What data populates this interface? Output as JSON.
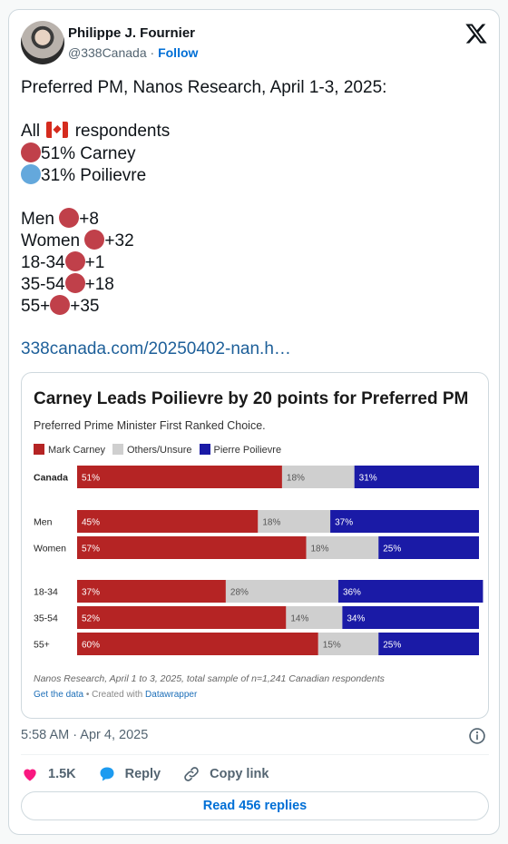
{
  "author": {
    "name": "Philippe J. Fournier",
    "handle": "@338Canada",
    "separator": " · ",
    "follow_label": "Follow"
  },
  "tweet": {
    "line1": "Preferred PM, Nanos Research, April 1-3, 2025:",
    "all_prefix": "All",
    "all_suffix": "respondents",
    "carney_line": "51% Carney",
    "poilievre_line": "31% Poilievre",
    "groups": [
      {
        "label": "Men ",
        "value": "+8"
      },
      {
        "label": "Women ",
        "value": "+32"
      },
      {
        "label": "18-34",
        "value": "+1"
      },
      {
        "label": "35-54",
        "value": "+18"
      },
      {
        "label": "55+",
        "value": "+35"
      }
    ],
    "link": "338canada.com/20250402-nan.h…"
  },
  "colors": {
    "carney": "#b52424",
    "others": "#cfcfcf",
    "poilievre": "#1a1aa6",
    "red_dot": "#c0404a",
    "blue_dot": "#64a8dc"
  },
  "chart_data": {
    "type": "bar",
    "stacked": true,
    "orientation": "horizontal",
    "title": "Carney Leads Poilievre by 20 points for Preferred PM",
    "subtitle": "Preferred Prime Minister First Ranked Choice.",
    "categories": [
      "Canada",
      "Men",
      "Women",
      "18-34",
      "35-54",
      "55+"
    ],
    "series": [
      {
        "name": "Mark Carney",
        "values": [
          51,
          45,
          57,
          37,
          52,
          60
        ]
      },
      {
        "name": "Others/Unsure",
        "values": [
          18,
          18,
          18,
          28,
          14,
          15
        ]
      },
      {
        "name": "Pierre Poilievre",
        "values": [
          31,
          37,
          25,
          36,
          34,
          25
        ]
      }
    ],
    "xlim": [
      0,
      100
    ],
    "legend": "top-left",
    "source": "Nanos Research, April 1 to 3, 2025, total sample of n=1,241 Canadian respondents",
    "get_data_label": "Get the data",
    "created_with": " • Created with ",
    "datawrapper_label": "Datawrapper"
  },
  "timestamp": "5:58 AM · Apr 4, 2025",
  "actions": {
    "likes": "1.5K",
    "reply": "Reply",
    "copy_link": "Copy link"
  },
  "read_replies": "Read 456 replies"
}
